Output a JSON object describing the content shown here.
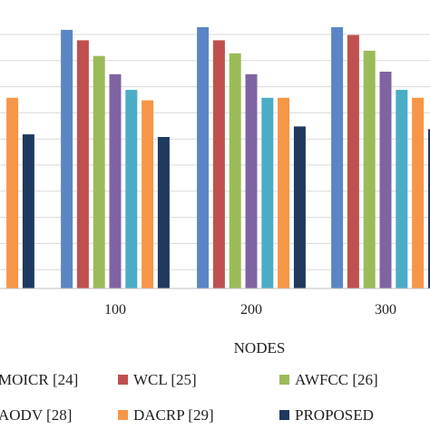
{
  "chart_data": {
    "type": "bar",
    "xlabel": "NODES",
    "ylabel": "",
    "grid": true,
    "legend_position": "bottom",
    "categories": [
      "",
      "100",
      "200",
      "300"
    ],
    "ylim": [
      0,
      100
    ],
    "series": [
      {
        "name": "MOICR [24]",
        "color": "#5B86C5",
        "values": [
          null,
          99,
          100,
          100
        ]
      },
      {
        "name": "WCL [25]",
        "color": "#C0504D",
        "values": [
          null,
          95,
          95,
          97
        ]
      },
      {
        "name": "AWFCC [26]",
        "color": "#9BBB59",
        "values": [
          null,
          89,
          90,
          91
        ]
      },
      {
        "name": "AODV [28]",
        "color": "#8064A2",
        "values": [
          null,
          82,
          82,
          83
        ]
      },
      {
        "name": "DACRP [29]",
        "color": "#4BACC6",
        "values": [
          null,
          76,
          73,
          76
        ]
      },
      {
        "name": "PROPOSED",
        "color": "#F79646",
        "values": [
          73,
          72,
          73,
          73
        ]
      },
      {
        "name": "",
        "color": "#1F3A5F",
        "values": [
          59,
          58,
          62,
          61
        ]
      }
    ],
    "legend_labels": [
      "MOICR [24]",
      "WCL [25]",
      "AWFCC [26]",
      "AODV [28]",
      "DACRP [29]",
      "PROPOSED"
    ]
  }
}
